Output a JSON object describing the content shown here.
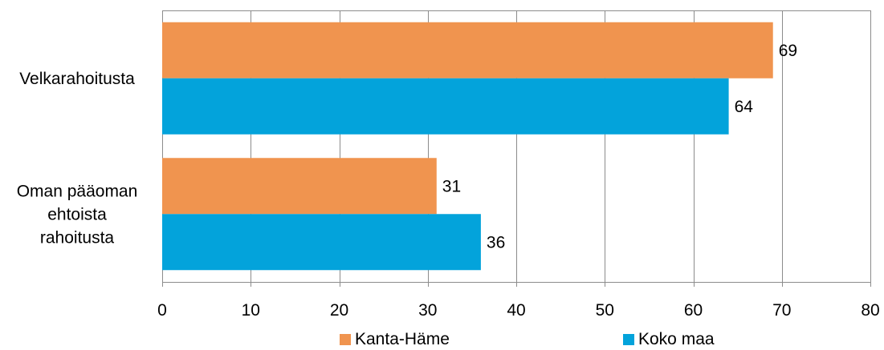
{
  "chart_data": {
    "type": "bar",
    "orientation": "horizontal",
    "categories": [
      "Velkarahoitusta",
      "Oman pääoman ehtoista rahoitusta"
    ],
    "category_lines": [
      [
        "Velkarahoitusta"
      ],
      [
        "Oman pääoman",
        "ehtoista",
        "rahoitusta"
      ]
    ],
    "series": [
      {
        "name": "Kanta-Häme",
        "values": [
          69,
          31
        ],
        "color": "#F0944F"
      },
      {
        "name": "Koko maa",
        "values": [
          64,
          36
        ],
        "color": "#03A3DB"
      }
    ],
    "xlim": [
      0,
      80
    ],
    "xticks": [
      0,
      10,
      20,
      30,
      40,
      50,
      60,
      70,
      80
    ],
    "grid": true,
    "legend_position": "bottom",
    "data_labels": true
  }
}
